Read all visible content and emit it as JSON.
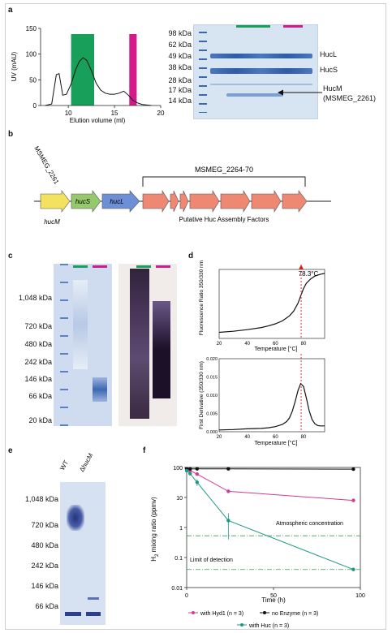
{
  "panels": {
    "a": {
      "letter": "a",
      "chromatogram": {
        "ylabel": "UV (mAU)",
        "xlabel": "Elution volume (ml)",
        "xticks": [
          "10",
          "15",
          "20"
        ],
        "yticks": [
          "0",
          "50",
          "100",
          "150"
        ],
        "green_color": "#18a05a",
        "magenta_color": "#d21a8a"
      },
      "gel_markers": [
        "98 kDa",
        "62 kDa",
        "49 kDa",
        "38 kDa",
        "28 kDa",
        "17 kDa",
        "14 kDa"
      ],
      "band_labels": {
        "hucl": "HucL",
        "hucs": "HucS",
        "hucm_line1": "HucM",
        "hucm_line2": "(MSMEG_2261)"
      }
    },
    "b": {
      "letter": "b",
      "gene_left_label": "MSMEG_2261",
      "bracket_label": "MSMEG_2264-70",
      "gene_hucm": "hucM",
      "gene_hucs": "hucS",
      "gene_hucl": "hucL",
      "factors_label": "Putative Huc Assembly Factors",
      "colors": {
        "hucm": "#f3e260",
        "hucs": "#95c96b",
        "hucl": "#6c8fd6",
        "factors": "#ee8873"
      }
    },
    "c": {
      "letter": "c",
      "markers": [
        "1,048 kDa",
        "720 kDa",
        "480 kDa",
        "242 kDa",
        "146 kDa",
        "66 kDa",
        "20 kDa"
      ]
    },
    "d": {
      "letter": "d",
      "top_ylabel": "Fluorescence Ratio 350/330 nm",
      "top_xlabel": "Temperature [°C]",
      "bottom_ylabel": "First Derivative (350/330 nm)",
      "bottom_xlabel": "Temperature [°C]",
      "tm_label": "78.3°C",
      "xticks": [
        "20",
        "40",
        "60",
        "80"
      ],
      "bottom_yticks": [
        "0.000",
        "0.005",
        "0.010",
        "0.015",
        "0.020"
      ]
    },
    "e": {
      "letter": "e",
      "lane_wt": "WT",
      "lane_dhucm": "ΔhucM",
      "markers": [
        "1,048 kDa",
        "720 kDa",
        "480 kDa",
        "242 kDa",
        "146 kDa",
        "66 kDa"
      ]
    },
    "f": {
      "letter": "f",
      "ylabel_pre": "H",
      "ylabel_sub": "2",
      "ylabel_post": " mixing ratio (ppmv)",
      "xlabel": "Time (h)",
      "yticks": [
        "0.01",
        "0.1",
        "1",
        "10",
        "100"
      ],
      "xticks": [
        "0",
        "50",
        "100"
      ],
      "atmospheric_label": "Atmospheric concentration",
      "detection_label": "Limit of detection",
      "legend": {
        "hyd1": "with Hyd1 (n = 3)",
        "no_enzyme": "no Enzyme (n = 3)",
        "huc": "with Huc (n = 3)"
      }
    }
  },
  "chart_data": [
    {
      "type": "line",
      "xlabel": "Elution volume (ml)",
      "ylabel": "UV (mAU)",
      "xlim": [
        7,
        20
      ],
      "ylim": [
        0,
        150
      ],
      "series": [
        {
          "x": [
            7.5,
            8.2,
            8.7,
            9.0,
            9.4,
            9.8,
            10.3,
            10.8,
            11.2,
            11.6,
            12.0,
            12.5,
            13.0,
            13.5,
            14.0,
            14.5,
            15.0,
            15.5,
            16.0,
            16.5,
            17.0,
            17.5,
            18.0,
            18.5,
            19.0
          ],
          "y": [
            0,
            3,
            60,
            62,
            20,
            22,
            42,
            70,
            86,
            93,
            88,
            68,
            44,
            30,
            24,
            22,
            22,
            24,
            28,
            20,
            10,
            5,
            2,
            1,
            0
          ]
        }
      ],
      "regions": [
        {
          "from": 10.3,
          "to": 12.8,
          "color": "#18a05a"
        },
        {
          "from": 16.6,
          "to": 17.4,
          "color": "#d21a8a"
        }
      ]
    },
    {
      "type": "line",
      "xlabel": "Temperature [°C]",
      "ylabel": "Fluorescence Ratio 350/330 nm",
      "xlim": [
        20,
        95
      ],
      "ylim": [
        0.7,
        0.96
      ],
      "series": [
        {
          "x": [
            20,
            30,
            40,
            50,
            55,
            60,
            65,
            70,
            73,
            76,
            78,
            80,
            82,
            85,
            88,
            92,
            95
          ],
          "y": [
            0.723,
            0.727,
            0.733,
            0.741,
            0.747,
            0.755,
            0.766,
            0.785,
            0.803,
            0.832,
            0.86,
            0.888,
            0.908,
            0.924,
            0.935,
            0.942,
            0.945
          ]
        }
      ],
      "vline": 78.3
    },
    {
      "type": "line",
      "xlabel": "Temperature [°C]",
      "ylabel": "First Derivative (350/330 nm)",
      "xlim": [
        20,
        95
      ],
      "ylim": [
        0,
        0.02
      ],
      "series": [
        {
          "x": [
            20,
            30,
            40,
            50,
            55,
            60,
            65,
            68,
            70,
            72,
            74,
            76,
            78,
            80,
            82,
            84,
            86,
            88,
            90,
            92,
            95
          ],
          "y": [
            0.0005,
            0.0006,
            0.0008,
            0.0009,
            0.0011,
            0.0014,
            0.002,
            0.0028,
            0.0038,
            0.0056,
            0.0082,
            0.0112,
            0.0132,
            0.0124,
            0.0092,
            0.0058,
            0.0034,
            0.0022,
            0.0017,
            0.0016,
            0.0016
          ]
        }
      ],
      "vline": 78.3
    },
    {
      "type": "line",
      "xlabel": "Time (h)",
      "ylabel": "H2 mixing ratio (ppmv)",
      "xlim": [
        0,
        100
      ],
      "ylim": [
        0.01,
        100
      ],
      "yscale": "log",
      "series": [
        {
          "name": "with Hyd1 (n = 3)",
          "color": "#d63a98",
          "x": [
            0,
            2,
            6,
            24,
            96
          ],
          "y": [
            90,
            78,
            60,
            16,
            8
          ]
        },
        {
          "name": "no Enzyme (n = 3)",
          "color": "#111111",
          "x": [
            0,
            2,
            6,
            24,
            96
          ],
          "y": [
            90,
            90,
            90,
            90,
            88
          ]
        },
        {
          "name": "with Huc (n = 3)",
          "color": "#1d9a86",
          "x": [
            0,
            2,
            6,
            24,
            96
          ],
          "y": [
            78,
            62,
            32,
            1.7,
            0.04
          ],
          "err": [
            0,
            0,
            8,
            1.3,
            0
          ]
        }
      ],
      "hlines": [
        {
          "y": 0.53,
          "label": "Atmospheric concentration"
        },
        {
          "y": 0.04,
          "label": "Limit of detection"
        }
      ]
    }
  ]
}
